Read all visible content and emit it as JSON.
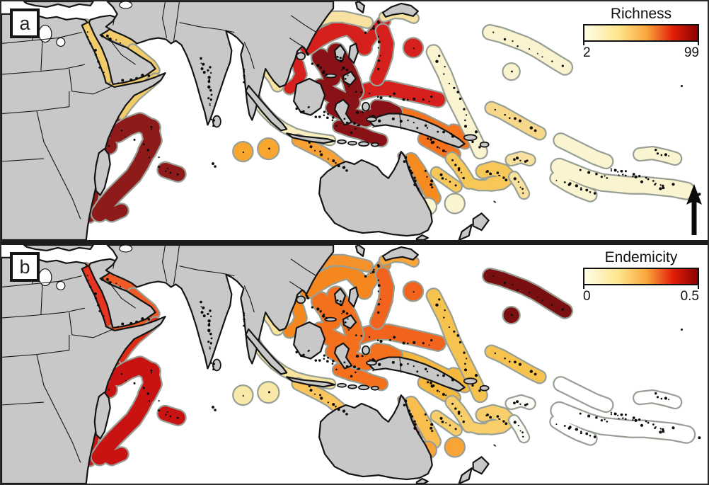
{
  "figure": {
    "kind": "two-panel biogeography map figure"
  },
  "map_colors": {
    "ocean": "#FFFFFF",
    "land": "#C8C8C8",
    "coastline": "#141414",
    "country_border": "#141414",
    "region_outline": "#98A096",
    "reef_dots": "#0B0B0B",
    "panel_divider": "#1C1C1C",
    "north_arrow": "#0B0B0B"
  },
  "legend_gradient": [
    "#FFFDE6",
    "#FDE68E",
    "#F9A63C",
    "#E32008",
    "#8C0002"
  ],
  "panels": [
    {
      "id": "a",
      "label": "a",
      "legend": {
        "title": "Richness",
        "min": "2",
        "max": "99"
      },
      "north_arrow": true,
      "region_colors": {
        "sunda-inner": "#FBF0C0",
        "gulf-thailand": "#F7E4A0",
        "nw-australia": "#F7A036",
        "coral-sea": "#F68B1F",
        "gbr-strip": "#7C1013",
        "png-bismarck": "#F5731C",
        "solomons": "#F5731C",
        "fiji-vanuatu": "#F7C758",
        "tonga-samoa": "#F9E2A0",
        "phoenix-tokelau": "#F7D78A",
        "polynesia-east": "#FBF4D1",
        "marshalls-gilbert": "#FAF3CF",
        "hawaii": "#FAF3CF",
        "micronesia": "#D5201D",
        "coral-triangle": "#8A1216",
        "vietnam-scs": "#D5201D",
        "ryukyu-scs-north": "#D5201D",
        "east-china-sea": "#F7E2A2",
        "japan-coast": "#F7E2A2",
        "bonin-chain": "#D5201D",
        "marcus-circle": "#D5201D",
        "red-sea": "#F2CC69",
        "persian-gulf": "#F2CC69",
        "arabia-coast": "#F2CC69",
        "somalia": "#F2CC69",
        "east-africa": "#8E1A1A",
        "madagascar-wio": "#8E1A1A",
        "cocos-christmas": "#F9A62E",
        "lordhowe-circles": "#FBF4D1"
      }
    },
    {
      "id": "b",
      "label": "b",
      "legend": {
        "title": "Endemicity",
        "min": "0",
        "max": "0.5"
      },
      "north_arrow": false,
      "region_colors": {
        "sunda-inner": "#F8E49C",
        "gulf-thailand": "#F8E49C",
        "nw-australia": "#F9C55C",
        "coral-sea": "#F9BE4E",
        "gbr-strip": "#DD1A0E",
        "png-bismarck": "#F7B83E",
        "solomons": "#F7B83E",
        "fiji-vanuatu": "#F8CE6B",
        "tonga-samoa": "#FDFDF8",
        "phoenix-tokelau": "#F6C34F",
        "polynesia-east": "#FFFFFF",
        "marshalls-gilbert": "#F6C34F",
        "hawaii": "#7A0F12",
        "micronesia": "#F2641E",
        "coral-triangle": "#F4701D",
        "vietnam-scs": "#F5871F",
        "ryukyu-scs-north": "#F5871F",
        "east-china-sea": "#F5922B",
        "japan-coast": "#F9A53A",
        "bonin-chain": "#F2641E",
        "marcus-circle": "#F2641E",
        "red-sea": "#E63420",
        "persian-gulf": "#EF5A26",
        "arabia-coast": "#EF5A26",
        "somalia": "#DE2C16",
        "east-africa": "#CC1713",
        "madagascar-wio": "#C91313",
        "cocos-christmas": "#F9E9A8",
        "lordhowe-circles": "#F8A437"
      }
    }
  ]
}
